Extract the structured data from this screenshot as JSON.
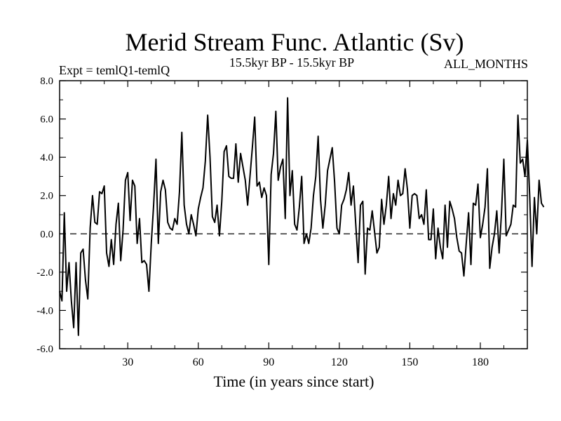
{
  "chart_data": {
    "type": "line",
    "title": "Merid Stream Func. Atlantic (Sv)",
    "subtitle_left": "Expt = temlQ1-temlQ",
    "subtitle_center": "15.5kyr BP - 15.5kyr BP",
    "subtitle_right": "ALL_MONTHS",
    "xlabel": "Time (in years since start)",
    "ylabel": "",
    "xlim": [
      1,
      200
    ],
    "ylim": [
      -6,
      8
    ],
    "x_ticks": [
      30,
      60,
      90,
      120,
      150,
      180
    ],
    "x_tick_labels": [
      "30",
      "60",
      "90",
      "120",
      "150",
      "180"
    ],
    "y_ticks": [
      -6,
      -4,
      -2,
      0,
      2,
      4,
      6,
      8
    ],
    "y_tick_labels": [
      "-6.0",
      "-4.0",
      "-2.0",
      "0.0",
      "2.0",
      "4.0",
      "6.0",
      "8.0"
    ],
    "reference_line": 0,
    "x_start": 1,
    "x_step": 1,
    "series": [
      {
        "name": "Merid Stream Func. Atlantic",
        "values": [
          -3.0,
          -3.5,
          1.1,
          -3.0,
          -1.5,
          -3.5,
          -4.9,
          -1.5,
          -5.3,
          -1.0,
          -0.8,
          -2.4,
          -3.4,
          0.3,
          2.0,
          0.6,
          0.5,
          2.2,
          2.1,
          2.5,
          -1.0,
          -1.7,
          -0.3,
          -1.6,
          0.5,
          1.6,
          -1.4,
          0.2,
          2.8,
          3.2,
          0.7,
          2.8,
          2.5,
          -0.5,
          0.8,
          -1.5,
          -1.4,
          -1.6,
          -3.0,
          -0.5,
          1.5,
          3.9,
          -0.5,
          2.2,
          2.8,
          2.3,
          0.6,
          0.3,
          0.2,
          0.8,
          0.5,
          2.2,
          5.3,
          1.5,
          0.5,
          0.0,
          1.0,
          0.5,
          -0.1,
          1.3,
          1.9,
          2.4,
          3.8,
          6.2,
          4.0,
          0.9,
          0.6,
          1.5,
          -0.1,
          1.7,
          4.3,
          4.6,
          3.0,
          2.9,
          2.9,
          4.7,
          2.7,
          4.2,
          3.5,
          2.8,
          1.5,
          3.0,
          4.5,
          6.1,
          2.5,
          2.7,
          1.9,
          2.4,
          2.0,
          -1.6,
          3.1,
          4.2,
          6.4,
          2.8,
          3.5,
          3.9,
          0.8,
          7.1,
          2.0,
          3.3,
          0.5,
          0.2,
          1.4,
          3.0,
          -0.5,
          0.0,
          -0.5,
          0.3,
          2.0,
          3.0,
          5.1,
          1.8,
          0.3,
          1.5,
          3.3,
          3.9,
          4.5,
          2.7,
          0.3,
          0.0,
          1.5,
          1.8,
          2.3,
          3.2,
          1.5,
          2.5,
          0.5,
          -1.5,
          1.5,
          1.7,
          -2.1,
          0.3,
          0.2,
          1.2,
          0.1,
          -1.0,
          -0.7,
          1.8,
          0.5,
          1.5,
          3.0,
          0.8,
          2.1,
          1.5,
          2.8,
          2.0,
          2.1,
          3.4,
          2.3,
          0.3,
          2.0,
          2.1,
          2.0,
          0.8,
          1.0,
          0.5,
          2.3,
          -0.3,
          -0.3,
          1.3,
          -1.3,
          0.3,
          -0.7,
          -1.3,
          1.5,
          -0.7,
          1.7,
          1.3,
          0.8,
          -0.2,
          -0.9,
          -1.0,
          -2.2,
          -0.5,
          1.1,
          -1.6,
          1.6,
          1.5,
          2.6,
          -0.2,
          0.5,
          1.4,
          3.4,
          -1.8,
          -0.7,
          0.0,
          1.2,
          -1.0,
          1.1,
          3.9,
          -0.1,
          0.2,
          0.5,
          1.5,
          1.4,
          6.2,
          3.7,
          3.9,
          3.0,
          4.9,
          2.0,
          -1.7,
          1.9,
          -0.0,
          2.8,
          1.6,
          1.4
        ]
      }
    ]
  },
  "colors": {
    "line": "#000000",
    "background": "#ffffff",
    "zero_line": "#000000"
  }
}
